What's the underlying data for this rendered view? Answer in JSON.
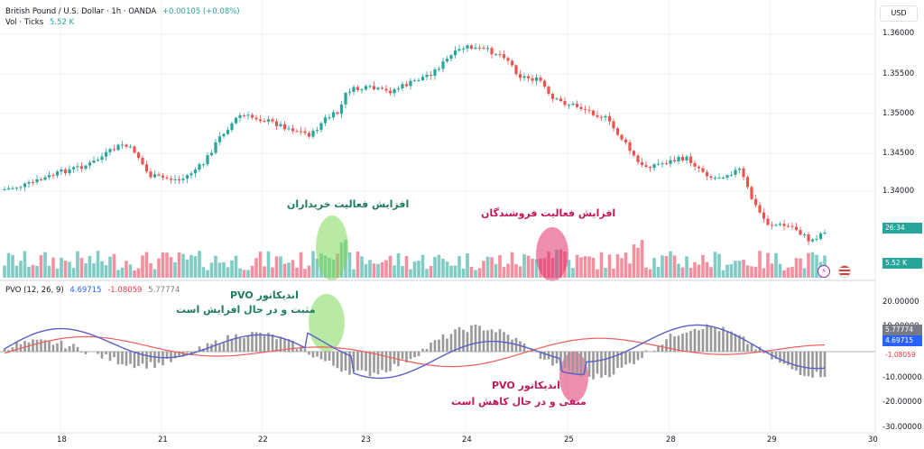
{
  "header": {
    "symbol": "British Pound / U.S. Dollar · 1h · OANDA",
    "change": "+0.00105 (+0.08%)",
    "vol_label": "Vol · Ticks",
    "vol_value": "5.52 K",
    "currency": "USD"
  },
  "price_axis": {
    "ticks": [
      "1.36000",
      "1.35500",
      "1.35000",
      "1.34500",
      "1.34000"
    ],
    "last_price": "26:34",
    "volume_last": "5.52 K"
  },
  "pvo": {
    "label": "PVO (12, 26, 9)",
    "value_blue": "4.69715",
    "value_red": "-1.08059",
    "value_hist": "5.77774",
    "axis_ticks": [
      "20.00000",
      "10.00000",
      "-10.00000",
      "-20.00000",
      "-30.00000"
    ],
    "pill_hist": "5.77774",
    "pill_blue": "4.69715",
    "pill_red": "-1.08059"
  },
  "time_axis": [
    "18",
    "21",
    "22",
    "23",
    "24",
    "25",
    "28",
    "29",
    "30"
  ],
  "annotations": {
    "buy_activity": "افزایش فعالیت خریداران",
    "sell_activity": "افزایش فعالیت فروشندگان",
    "pvo_positive_1": "اندیکاتور PVO",
    "pvo_positive_2": "مثبت و در حال افزایش است",
    "pvo_negative_1": "اندیکاتور PVO",
    "pvo_negative_2": "منفی و در حال کاهش است"
  },
  "colors": {
    "up": "#26a69a",
    "down": "#ef5350",
    "vol_up": "#80cbc4",
    "vol_down": "#f48fa0",
    "pvo_line": "#5b5fc7",
    "signal_line": "#f15d5d",
    "hist": "#999999",
    "annotation_green": "#1e7b5e",
    "annotation_pink": "#c2185b",
    "highlight_green": "#7ed957",
    "highlight_pink": "#e0306a"
  }
}
